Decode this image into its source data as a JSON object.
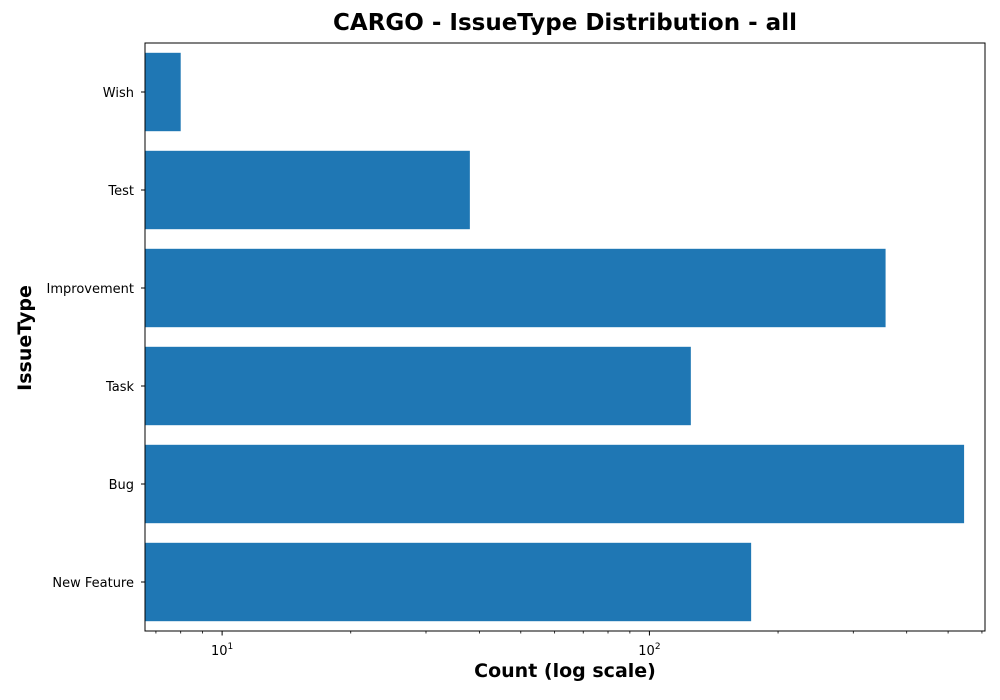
{
  "chart_data": {
    "type": "bar",
    "orientation": "horizontal",
    "title": "CARGO - IssueType Distribution - all",
    "xlabel": "Count (log scale)",
    "ylabel": "IssueType",
    "x_scale": "log",
    "xlim": [
      6.6,
      610
    ],
    "grid": false,
    "categories": [
      "New Feature",
      "Bug",
      "Task",
      "Improvement",
      "Test",
      "Wish"
    ],
    "values": [
      173,
      545,
      125,
      357,
      38,
      8
    ],
    "x_tick_labels": [
      {
        "base": "10",
        "exp": "1",
        "value": 10
      },
      {
        "base": "10",
        "exp": "2",
        "value": 100
      }
    ],
    "bar_color": "#1f77b4"
  }
}
